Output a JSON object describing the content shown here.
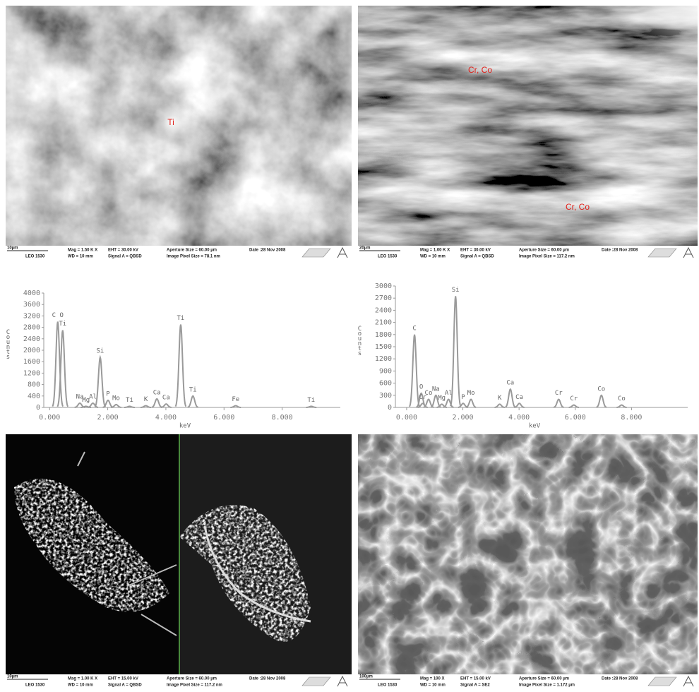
{
  "micrographs": [
    {
      "labels": [
        "Ti"
      ],
      "info": {
        "scale_bar": "10µm",
        "instrument": "LEO 1530",
        "mag": "Mag =  1.50 K X",
        "wd": "WD =  10 mm",
        "eht": "EHT = 30.00 kV",
        "signal": "Signal A = QBSD",
        "aperture": "Aperture Size = 60.00 µm",
        "pixel_size": "Image Pixel Size = 78.1 nm",
        "date": "Date :28 Nov 2008"
      }
    },
    {
      "labels": [
        "Cr, Co",
        "Cr, Co"
      ],
      "info": {
        "scale_bar": "20µm",
        "instrument": "LEO 1530",
        "mag": "Mag =  1.00 K X",
        "wd": "WD =  10 mm",
        "eht": "EHT = 30.00 kV",
        "signal": "Signal A = QBSD",
        "aperture": "Aperture Size = 60.00 µm",
        "pixel_size": "Image Pixel Size = 117.2 nm",
        "date": "Date :28 Nov 2008"
      }
    },
    {
      "labels": [],
      "info": {
        "scale_bar": "10µm",
        "instrument": "LEO 1530",
        "mag": "Mag =  1.00 K X",
        "wd": "WD =  10 mm",
        "eht": "EHT = 15.00 kV",
        "signal": "Signal A = QBSD",
        "aperture": "Aperture Size = 60.00 µm",
        "pixel_size": "Image Pixel Size = 117.2 nm",
        "date": "Date :28 Nov 2008"
      }
    },
    {
      "labels": [],
      "info": {
        "scale_bar": "100µm",
        "instrument": "LEO 1530",
        "mag": "Mag =  100 X",
        "wd": "WD =  10 mm",
        "eht": "EHT = 15.00 kV",
        "signal": "Signal A = SE2",
        "aperture": "Aperture Size = 60.00 µm",
        "pixel_size": "Image Pixel Size = 1.172 µm",
        "date": "Date :28 Nov 2008"
      }
    }
  ],
  "chart_data": [
    {
      "type": "spectrum",
      "x_label": "keV",
      "y_label": "Counts",
      "color": "#9a9a9a",
      "xlim": [
        -0.2,
        10
      ],
      "ylim": [
        0,
        4000
      ],
      "xticks": [
        {
          "value": 0,
          "label": "0.000"
        },
        {
          "value": 2,
          "label": "2.000"
        },
        {
          "value": 4,
          "label": "4.000"
        },
        {
          "value": 6,
          "label": "6.000"
        },
        {
          "value": 8,
          "label": "8.000"
        }
      ],
      "yticks": [
        0,
        400,
        800,
        1200,
        1600,
        2000,
        2400,
        2800,
        3200,
        3600,
        4000
      ],
      "peaks": [
        {
          "label": "C O",
          "energy": 0.28,
          "counts": 3000
        },
        {
          "label": "Ti",
          "energy": 0.45,
          "counts": 2700
        },
        {
          "label": "Na",
          "energy": 1.04,
          "counts": 150
        },
        {
          "label": "Mg",
          "energy": 1.25,
          "counts": 40
        },
        {
          "label": "Al",
          "energy": 1.49,
          "counts": 150
        },
        {
          "label": "Si",
          "energy": 1.74,
          "counts": 1750
        },
        {
          "label": "P",
          "energy": 2.01,
          "counts": 250
        },
        {
          "label": "Mo",
          "energy": 2.29,
          "counts": 100
        },
        {
          "label": "Ti",
          "energy": 2.75,
          "counts": 40
        },
        {
          "label": "K",
          "energy": 3.31,
          "counts": 60
        },
        {
          "label": "Ca",
          "energy": 3.69,
          "counts": 300
        },
        {
          "label": "Ca",
          "energy": 4.01,
          "counts": 120
        },
        {
          "label": "Ti",
          "energy": 4.51,
          "counts": 2900
        },
        {
          "label": "Ti",
          "energy": 4.93,
          "counts": 400
        },
        {
          "label": "Fe",
          "energy": 6.4,
          "counts": 60
        },
        {
          "label": "Ti",
          "energy": 9.0,
          "counts": 40
        }
      ]
    },
    {
      "type": "spectrum",
      "x_label": "keV",
      "y_label": "Counts",
      "color": "#9a9a9a",
      "xlim": [
        -0.4,
        10
      ],
      "ylim": [
        0,
        3000
      ],
      "xticks": [
        {
          "value": 0,
          "label": "0.000"
        },
        {
          "value": 2,
          "label": "2.000"
        },
        {
          "value": 4,
          "label": "4.000"
        },
        {
          "value": 6,
          "label": "6.000"
        },
        {
          "value": 8,
          "label": "8.000"
        }
      ],
      "yticks": [
        0,
        300,
        600,
        900,
        1200,
        1500,
        1800,
        2100,
        2400,
        2700,
        3000
      ],
      "peaks": [
        {
          "label": "C",
          "energy": 0.28,
          "counts": 1800
        },
        {
          "label": "O",
          "energy": 0.52,
          "counts": 350
        },
        {
          "label": "Cr",
          "energy": 0.57,
          "counts": 100
        },
        {
          "label": "Co",
          "energy": 0.78,
          "counts": 200
        },
        {
          "label": "Na",
          "energy": 1.04,
          "counts": 300
        },
        {
          "label": "Mg",
          "energy": 1.25,
          "counts": 80
        },
        {
          "label": "Al",
          "energy": 1.49,
          "counts": 200
        },
        {
          "label": "Si",
          "energy": 1.74,
          "counts": 2750
        },
        {
          "label": "P",
          "energy": 2.01,
          "counts": 100
        },
        {
          "label": "Mo",
          "energy": 2.29,
          "counts": 200
        },
        {
          "label": "K",
          "energy": 3.31,
          "counts": 80
        },
        {
          "label": "Ca",
          "energy": 3.69,
          "counts": 450
        },
        {
          "label": "Ca",
          "energy": 4.01,
          "counts": 100
        },
        {
          "label": "Cr",
          "energy": 5.41,
          "counts": 200
        },
        {
          "label": "Cr",
          "energy": 5.95,
          "counts": 60
        },
        {
          "label": "Co",
          "energy": 6.93,
          "counts": 300
        },
        {
          "label": "Co",
          "energy": 7.65,
          "counts": 60
        }
      ]
    }
  ]
}
